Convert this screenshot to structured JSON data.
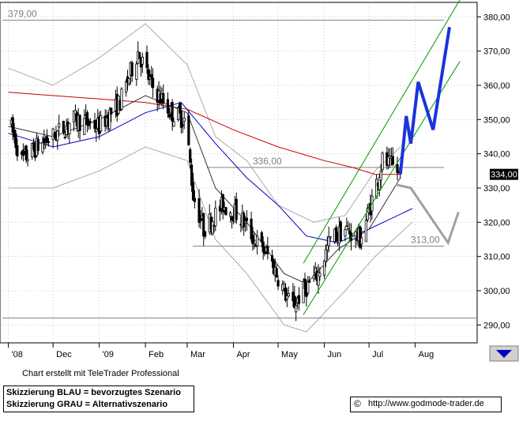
{
  "chart_data": {
    "type": "candlestick",
    "x_tick_labels": [
      "'08",
      "Dec",
      "'09",
      "Feb",
      "Mar",
      "Apr",
      "May",
      "Jun",
      "Jul",
      "Aug"
    ],
    "y_tick_labels": [
      "290,00",
      "300,00",
      "310,00",
      "320,00",
      "330,00",
      "340,00",
      "350,00",
      "360,00",
      "370,00",
      "380,00"
    ],
    "y_ticks": [
      290,
      300,
      310,
      320,
      330,
      340,
      350,
      360,
      370,
      380
    ],
    "ylim": [
      285,
      384
    ],
    "price_label": "334,00",
    "last_price": 334,
    "levels": [
      {
        "value": 379,
        "label": "379,00"
      },
      {
        "value": 336,
        "label": "336,00"
      },
      {
        "value": 313,
        "label": "313,00"
      },
      {
        "value": 292,
        "label": ""
      }
    ],
    "price_anchors": [
      [
        "2008-11-01",
        350
      ],
      [
        "2008-11-10",
        338
      ],
      [
        "2008-11-20",
        342
      ],
      [
        "2008-12-01",
        345
      ],
      [
        "2008-12-15",
        350
      ],
      [
        "2009-01-01",
        348
      ],
      [
        "2009-01-15",
        355
      ],
      [
        "2009-01-27",
        370
      ],
      [
        "2009-02-05",
        360
      ],
      [
        "2009-02-18",
        352
      ],
      [
        "2009-02-28",
        350
      ],
      [
        "2009-03-05",
        328
      ],
      [
        "2009-03-12",
        318
      ],
      [
        "2009-03-25",
        325
      ],
      [
        "2009-04-05",
        322
      ],
      [
        "2009-04-15",
        315
      ],
      [
        "2009-04-25",
        310
      ],
      [
        "2009-05-05",
        300
      ],
      [
        "2009-05-10",
        295
      ],
      [
        "2009-05-18",
        300
      ],
      [
        "2009-05-28",
        305
      ],
      [
        "2009-06-05",
        315
      ],
      [
        "2009-06-15",
        318
      ],
      [
        "2009-06-25",
        315
      ],
      [
        "2009-07-02",
        325
      ],
      [
        "2009-07-10",
        338
      ],
      [
        "2009-07-17",
        336
      ],
      [
        "2009-07-22",
        334
      ]
    ],
    "ma_200": [
      [
        "2008-11-01",
        358
      ],
      [
        "2008-12-01",
        357
      ],
      [
        "2009-01-01",
        356
      ],
      [
        "2009-02-01",
        355
      ],
      [
        "2009-03-01",
        353
      ],
      [
        "2009-04-01",
        347
      ],
      [
        "2009-05-01",
        342
      ],
      [
        "2009-06-01",
        338
      ],
      [
        "2009-06-20",
        336
      ],
      [
        "2009-07-05",
        334
      ],
      [
        "2009-07-22",
        334
      ]
    ],
    "ma_50": [
      [
        "2008-11-01",
        346
      ],
      [
        "2008-12-01",
        342
      ],
      [
        "2009-01-01",
        345
      ],
      [
        "2009-02-01",
        352
      ],
      [
        "2009-02-25",
        355
      ],
      [
        "2009-03-20",
        343
      ],
      [
        "2009-04-10",
        333
      ],
      [
        "2009-05-01",
        325
      ],
      [
        "2009-05-20",
        316
      ],
      [
        "2009-06-10",
        314
      ],
      [
        "2009-07-01",
        318
      ],
      [
        "2009-07-30",
        324
      ]
    ],
    "ma_20": [
      [
        "2008-11-01",
        348
      ],
      [
        "2008-12-01",
        345
      ],
      [
        "2009-01-01",
        350
      ],
      [
        "2009-02-01",
        357
      ],
      [
        "2009-03-01",
        352
      ],
      [
        "2009-03-20",
        330
      ],
      [
        "2009-04-10",
        320
      ],
      [
        "2009-05-05",
        305
      ],
      [
        "2009-05-20",
        302
      ],
      [
        "2009-06-10",
        312
      ],
      [
        "2009-07-01",
        318
      ],
      [
        "2009-07-22",
        333
      ]
    ],
    "bollinger_upper": [
      [
        "2008-11-01",
        365
      ],
      [
        "2008-12-01",
        360
      ],
      [
        "2009-01-01",
        368
      ],
      [
        "2009-02-01",
        378
      ],
      [
        "2009-03-01",
        366
      ],
      [
        "2009-03-20",
        345
      ],
      [
        "2009-04-10",
        338
      ],
      [
        "2009-05-01",
        325
      ],
      [
        "2009-05-25",
        320
      ],
      [
        "2009-06-15",
        322
      ],
      [
        "2009-07-05",
        335
      ],
      [
        "2009-07-22",
        342
      ]
    ],
    "bollinger_lower": [
      [
        "2008-11-01",
        330
      ],
      [
        "2008-12-01",
        330
      ],
      [
        "2009-01-01",
        335
      ],
      [
        "2009-02-01",
        342
      ],
      [
        "2009-03-01",
        338
      ],
      [
        "2009-03-20",
        315
      ],
      [
        "2009-04-10",
        305
      ],
      [
        "2009-05-05",
        290
      ],
      [
        "2009-05-20",
        288
      ],
      [
        "2009-06-15",
        300
      ],
      [
        "2009-07-05",
        310
      ],
      [
        "2009-07-30",
        320
      ]
    ],
    "channel_upper": [
      [
        "2009-05-18",
        308
      ],
      [
        "2009-08-31",
        385
      ]
    ],
    "channel_lower": [
      [
        "2009-05-18",
        293
      ],
      [
        "2009-08-31",
        367
      ]
    ],
    "scenario_blue": [
      [
        "2009-07-22",
        334
      ],
      [
        "2009-07-26",
        351
      ],
      [
        "2009-07-29",
        343
      ],
      [
        "2009-08-03",
        361
      ],
      [
        "2009-08-13",
        347
      ],
      [
        "2009-08-24",
        377
      ]
    ],
    "scenario_grey": [
      [
        "2009-07-19",
        331
      ],
      [
        "2009-07-29",
        330
      ],
      [
        "2009-08-23",
        314
      ],
      [
        "2009-08-30",
        323
      ]
    ]
  },
  "footer": {
    "credit": "Chart erstellt mit TeleTrader Professional",
    "legend_blue": "Skizzierung BLAU = bevorzugtes Szenario",
    "legend_grey": "Skizzierung GRAU = Alternativszenario",
    "source_icon": "copyright-icon",
    "source_symbol": "©",
    "source_url": "http://www.godmode-trader.de"
  },
  "colors": {
    "candles": "#000000",
    "ma_200": "#cc0000",
    "ma_50": "#0000cc",
    "ma_20": "#333333",
    "bollinger": "#aaaaaa",
    "channel": "#009900",
    "scenario_blue": "#1a33dd",
    "scenario_grey": "#a0a0a0",
    "levels": "#808080",
    "price_box": "#000000",
    "nav_button": "#d4d0c8",
    "nav_arrow": "#0000cc"
  }
}
